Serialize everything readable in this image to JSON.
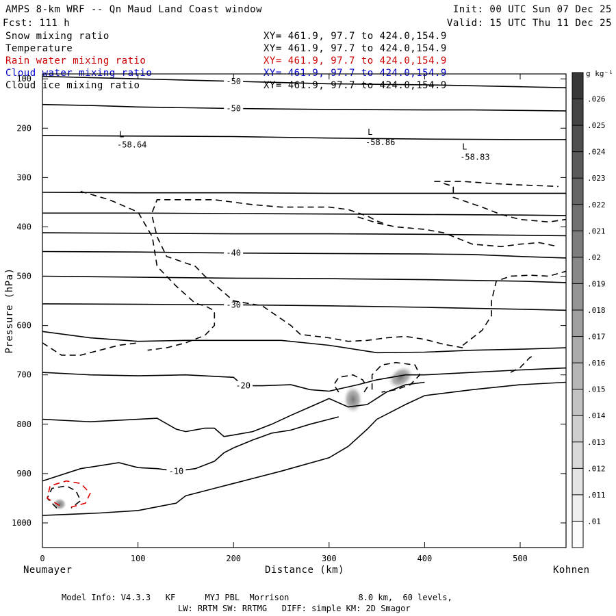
{
  "header": {
    "title": "AMPS 8-km WRF -- Qn Maud Land Coast window",
    "forecast": "Fcst:  111 h",
    "init": "Init: 00 UTC Sun 07 Dec 25",
    "valid": "Valid: 15 UTC Thu 11 Dec 25"
  },
  "legend_rows": [
    {
      "name": "Snow mixing ratio",
      "xy": "XY= 461.9, 97.7 to 424.0,154.9",
      "color": "#000000"
    },
    {
      "name": "Temperature",
      "xy": "XY= 461.9, 97.7 to 424.0,154.9",
      "color": "#000000"
    },
    {
      "name": "Rain water mixing ratio",
      "xy": "XY= 461.9, 97.7 to 424.0,154.9",
      "color": "#cc0000"
    },
    {
      "name": "Cloud water mixing ratio",
      "xy": "XY= 461.9, 97.7 to 424.0,154.9",
      "color": "#0000cc"
    },
    {
      "name": "Cloud ice mixing ratio",
      "xy": "XY= 461.9, 97.7 to 424.0,154.9",
      "color": "#000000"
    }
  ],
  "footer": {
    "line1": "Model Info: V4.3.3   KF      MYJ PBL  Morrison              8.0 km,  60 levels,",
    "line2": "LW: RRTM SW: RRTMG   DIFF: simple KM: 2D Smagor"
  },
  "chart_data": {
    "type": "contour",
    "title": "AMPS 8-km WRF -- Qn Maud Land Coast window",
    "xlabel": "Distance (km)",
    "ylabel": "Pressure (hPa)",
    "xlim": [
      0,
      548
    ],
    "ylim": [
      90,
      1050
    ],
    "x_ticks": [
      0,
      100,
      200,
      300,
      400,
      500
    ],
    "y_ticks": [
      100,
      200,
      300,
      400,
      500,
      600,
      700,
      800,
      900,
      1000
    ],
    "x_endpoints": {
      "left": "Neumayer",
      "right": "Kohnen"
    },
    "colorbar": {
      "unit": "g kg⁻¹",
      "ticks": [
        ".01",
        ".011",
        ".012",
        ".013",
        ".014",
        ".015",
        ".016",
        ".017",
        ".018",
        ".019",
        ".02",
        ".021",
        ".022",
        ".023",
        ".024",
        ".025",
        ".026"
      ]
    },
    "temperature_contours": [
      {
        "label": "-50",
        "points": [
          [
            0,
            95
          ],
          [
            100,
            100
          ],
          [
            200,
            105
          ],
          [
            300,
            110
          ],
          [
            400,
            112
          ],
          [
            500,
            116
          ],
          [
            548,
            118
          ]
        ]
      },
      {
        "label": "-50",
        "points": [
          [
            0,
            152
          ],
          [
            50,
            154
          ],
          [
            100,
            157
          ],
          [
            200,
            160
          ],
          [
            300,
            162
          ],
          [
            400,
            163
          ],
          [
            450,
            163
          ],
          [
            500,
            164
          ],
          [
            548,
            165
          ]
        ]
      },
      {
        "label": "",
        "points": [
          [
            0,
            215
          ],
          [
            100,
            216
          ],
          [
            200,
            217
          ],
          [
            300,
            220
          ],
          [
            400,
            222
          ],
          [
            500,
            223
          ],
          [
            548,
            223
          ]
        ]
      },
      {
        "label": "",
        "points": [
          [
            0,
            330
          ],
          [
            100,
            331
          ],
          [
            200,
            331
          ],
          [
            300,
            332
          ],
          [
            400,
            332
          ],
          [
            500,
            332
          ],
          [
            548,
            332
          ]
        ]
      },
      {
        "label": "",
        "points": [
          [
            0,
            372
          ],
          [
            100,
            372
          ],
          [
            200,
            373
          ],
          [
            300,
            374
          ],
          [
            400,
            375
          ],
          [
            500,
            376
          ],
          [
            548,
            377
          ]
        ]
      },
      {
        "label": "",
        "points": [
          [
            0,
            412
          ],
          [
            100,
            413
          ],
          [
            200,
            414
          ],
          [
            300,
            414
          ],
          [
            400,
            415
          ],
          [
            500,
            417
          ],
          [
            548,
            418
          ]
        ]
      },
      {
        "label": "-40",
        "points": [
          [
            0,
            450
          ],
          [
            100,
            451
          ],
          [
            200,
            453
          ],
          [
            300,
            454
          ],
          [
            400,
            455
          ],
          [
            450,
            456
          ],
          [
            500,
            460
          ],
          [
            548,
            463
          ]
        ]
      },
      {
        "label": "",
        "points": [
          [
            0,
            500
          ],
          [
            100,
            502
          ],
          [
            200,
            504
          ],
          [
            300,
            505
          ],
          [
            400,
            507
          ],
          [
            500,
            510
          ],
          [
            548,
            513
          ]
        ]
      },
      {
        "label": "-30",
        "points": [
          [
            0,
            556
          ],
          [
            100,
            557
          ],
          [
            200,
            558
          ],
          [
            300,
            560
          ],
          [
            400,
            563
          ],
          [
            450,
            565
          ],
          [
            500,
            567
          ],
          [
            548,
            569
          ]
        ]
      },
      {
        "label": "",
        "points": [
          [
            0,
            612
          ],
          [
            50,
            625
          ],
          [
            100,
            632
          ],
          [
            150,
            630
          ],
          [
            200,
            630
          ],
          [
            250,
            630
          ],
          [
            300,
            640
          ],
          [
            350,
            655
          ],
          [
            400,
            654
          ],
          [
            450,
            650
          ],
          [
            500,
            648
          ],
          [
            548,
            645
          ]
        ]
      },
      {
        "label": "-20",
        "points": [
          [
            0,
            695
          ],
          [
            50,
            700
          ],
          [
            100,
            702
          ],
          [
            150,
            700
          ],
          [
            200,
            705
          ],
          [
            210,
            722
          ],
          [
            230,
            722
          ],
          [
            260,
            720
          ],
          [
            280,
            730
          ],
          [
            300,
            733
          ],
          [
            330,
            720
          ],
          [
            350,
            710
          ],
          [
            380,
            700
          ],
          [
            400,
            700
          ],
          [
            450,
            695
          ],
          [
            500,
            690
          ],
          [
            548,
            686
          ]
        ]
      },
      {
        "label": "",
        "points": [
          [
            0,
            790
          ],
          [
            50,
            795
          ],
          [
            100,
            790
          ],
          [
            120,
            788
          ],
          [
            140,
            810
          ],
          [
            150,
            815
          ],
          [
            170,
            808
          ],
          [
            180,
            808
          ],
          [
            190,
            825
          ],
          [
            200,
            822
          ],
          [
            220,
            815
          ],
          [
            240,
            800
          ],
          [
            260,
            782
          ],
          [
            280,
            765
          ],
          [
            300,
            748
          ],
          [
            320,
            765
          ],
          [
            340,
            760
          ],
          [
            360,
            735
          ],
          [
            380,
            720
          ],
          [
            400,
            715
          ]
        ]
      },
      {
        "label": "-10",
        "points": [
          [
            0,
            915
          ],
          [
            40,
            890
          ],
          [
            80,
            878
          ],
          [
            100,
            888
          ],
          [
            120,
            890
          ],
          [
            140,
            895
          ],
          [
            160,
            890
          ],
          [
            180,
            875
          ],
          [
            190,
            858
          ],
          [
            200,
            848
          ],
          [
            220,
            832
          ],
          [
            240,
            818
          ],
          [
            260,
            812
          ],
          [
            280,
            800
          ],
          [
            300,
            790
          ],
          [
            310,
            785
          ]
        ]
      },
      {
        "label": "",
        "points": [
          [
            0,
            985
          ],
          [
            60,
            980
          ],
          [
            100,
            975
          ],
          [
            140,
            960
          ],
          [
            150,
            945
          ],
          [
            180,
            930
          ],
          [
            200,
            920
          ],
          [
            250,
            895
          ],
          [
            300,
            868
          ],
          [
            320,
            845
          ],
          [
            340,
            810
          ],
          [
            350,
            790
          ],
          [
            380,
            760
          ],
          [
            400,
            742
          ],
          [
            450,
            730
          ],
          [
            500,
            720
          ],
          [
            548,
            715
          ]
        ]
      }
    ],
    "ice_mixing_contours": [
      {
        "label": "",
        "points": [
          [
            0,
            635
          ],
          [
            20,
            660
          ],
          [
            40,
            660
          ],
          [
            60,
            650
          ],
          [
            80,
            640
          ],
          [
            100,
            635
          ]
        ]
      },
      {
        "label": "",
        "points": [
          [
            40,
            328
          ],
          [
            70,
            345
          ],
          [
            100,
            370
          ],
          [
            115,
            420
          ],
          [
            120,
            480
          ],
          [
            140,
            520
          ],
          [
            160,
            555
          ],
          [
            170,
            560
          ],
          [
            180,
            570
          ],
          [
            180,
            600
          ],
          [
            170,
            620
          ],
          [
            150,
            635
          ],
          [
            130,
            645
          ],
          [
            110,
            650
          ]
        ]
      },
      {
        "label": "",
        "points": [
          [
            115,
            370
          ],
          [
            120,
            345
          ],
          [
            140,
            345
          ],
          [
            180,
            345
          ],
          [
            220,
            355
          ],
          [
            250,
            360
          ],
          [
            280,
            360
          ],
          [
            300,
            360
          ],
          [
            320,
            365
          ],
          [
            340,
            378
          ],
          [
            350,
            388
          ],
          [
            360,
            395
          ]
        ]
      },
      {
        "label": "",
        "points": [
          [
            115,
            380
          ],
          [
            120,
            420
          ],
          [
            130,
            460
          ],
          [
            160,
            480
          ],
          [
            170,
            500
          ],
          [
            200,
            550
          ],
          [
            230,
            560
          ],
          [
            260,
            600
          ],
          [
            270,
            618
          ],
          [
            300,
            625
          ],
          [
            320,
            632
          ],
          [
            340,
            630
          ],
          [
            360,
            625
          ],
          [
            380,
            622
          ],
          [
            400,
            628
          ],
          [
            420,
            638
          ],
          [
            440,
            645
          ]
        ]
      },
      {
        "label": "",
        "points": [
          [
            330,
            380
          ],
          [
            350,
            392
          ],
          [
            370,
            400
          ],
          [
            400,
            405
          ],
          [
            420,
            412
          ],
          [
            450,
            435
          ],
          [
            480,
            440
          ],
          [
            500,
            435
          ],
          [
            520,
            432
          ],
          [
            540,
            440
          ]
        ]
      },
      {
        "label": "",
        "points": [
          [
            410,
            308
          ],
          [
            440,
            308
          ],
          [
            470,
            312
          ],
          [
            500,
            315
          ],
          [
            540,
            318
          ]
        ]
      },
      {
        "label": "",
        "points": [
          [
            420,
            312
          ],
          [
            430,
            318
          ],
          [
            430,
            340
          ],
          [
            460,
            360
          ],
          [
            480,
            375
          ],
          [
            500,
            385
          ],
          [
            530,
            390
          ],
          [
            548,
            385
          ]
        ]
      },
      {
        "label": "",
        "points": [
          [
            440,
            640
          ],
          [
            460,
            610
          ],
          [
            470,
            580
          ],
          [
            470,
            550
          ],
          [
            475,
            510
          ],
          [
            490,
            500
          ],
          [
            510,
            498
          ],
          [
            530,
            500
          ],
          [
            548,
            490
          ]
        ]
      },
      {
        "label": "",
        "points": [
          [
            490,
            695
          ],
          [
            500,
            685
          ],
          [
            510,
            665
          ],
          [
            515,
            660
          ]
        ]
      },
      {
        "label": "",
        "points": [
          [
            310,
            735
          ],
          [
            305,
            720
          ],
          [
            310,
            705
          ],
          [
            325,
            700
          ],
          [
            335,
            710
          ],
          [
            340,
            725
          ],
          [
            335,
            740
          ]
        ]
      },
      {
        "label": "",
        "points": [
          [
            345,
            730
          ],
          [
            345,
            700
          ],
          [
            355,
            680
          ],
          [
            370,
            675
          ],
          [
            390,
            680
          ],
          [
            395,
            700
          ],
          [
            385,
            720
          ],
          [
            370,
            730
          ],
          [
            355,
            735
          ]
        ]
      },
      {
        "label": "",
        "points": [
          [
            15,
            970
          ],
          [
            5,
            950
          ],
          [
            10,
            930
          ],
          [
            25,
            925
          ],
          [
            35,
            935
          ],
          [
            40,
            955
          ],
          [
            30,
            970
          ]
        ]
      }
    ],
    "rain_contours": [
      {
        "label": "",
        "points": [
          [
            18,
            965
          ],
          [
            5,
            950
          ],
          [
            8,
            925
          ],
          [
            25,
            915
          ],
          [
            40,
            920
          ],
          [
            50,
            940
          ],
          [
            45,
            960
          ],
          [
            30,
            968
          ]
        ]
      }
    ],
    "low_markers": [
      {
        "label": "L",
        "value": "-58.64",
        "x": 65,
        "p": 260
      },
      {
        "label": "L",
        "value": "-58.86",
        "x": 325,
        "p": 255
      },
      {
        "label": "L",
        "value": "-58.83",
        "x": 424,
        "p": 285
      }
    ],
    "shaded_maxima": [
      {
        "x": 325,
        "p": 750,
        "value": 0.014
      },
      {
        "x": 375,
        "p": 705,
        "value": 0.014
      },
      {
        "x": 18,
        "p": 962,
        "value": 0.012
      }
    ]
  }
}
